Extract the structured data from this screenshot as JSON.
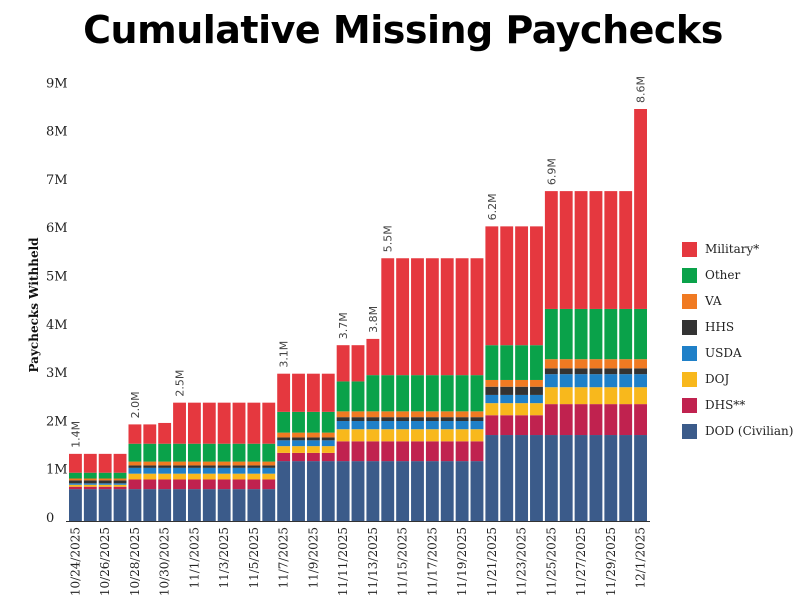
{
  "chart_data": {
    "type": "bar",
    "stacked": true,
    "title": "Cumulative Missing Paychecks",
    "xlabel": "",
    "ylabel": "Paychecks Withheld",
    "ylim": [
      0,
      9000000
    ],
    "yticks": [
      "0",
      "1M",
      "2M",
      "3M",
      "4M",
      "5M",
      "6M",
      "7M",
      "8M",
      "9M"
    ],
    "categories": [
      "10/24/2025",
      "10/25/2025",
      "10/26/2025",
      "10/27/2025",
      "10/28/2025",
      "10/29/2025",
      "10/30/2025",
      "10/31/2025",
      "11/1/2025",
      "11/2/2025",
      "11/3/2025",
      "11/4/2025",
      "11/5/2025",
      "11/6/2025",
      "11/7/2025",
      "11/8/2025",
      "11/9/2025",
      "11/10/2025",
      "11/11/2025",
      "11/12/2025",
      "11/13/2025",
      "11/14/2025",
      "11/15/2025",
      "11/16/2025",
      "11/17/2025",
      "11/18/2025",
      "11/19/2025",
      "11/20/2025",
      "11/21/2025",
      "11/22/2025",
      "11/23/2025",
      "11/24/2025",
      "11/25/2025",
      "11/26/2025",
      "11/27/2025",
      "11/28/2025",
      "11/29/2025",
      "11/30/2025",
      "12/1/2025"
    ],
    "xtick_labels": [
      "10/24/2025",
      "10/26/2025",
      "10/28/2025",
      "10/30/2025",
      "11/1/2025",
      "11/3/2025",
      "11/5/2025",
      "11/7/2025",
      "11/9/2025",
      "11/11/2025",
      "11/13/2025",
      "11/15/2025",
      "11/17/2025",
      "11/19/2025",
      "11/21/2025",
      "11/23/2025",
      "11/25/2025",
      "11/27/2025",
      "11/29/2025",
      "12/1/2025"
    ],
    "series_values_unit": "millions",
    "series": [
      {
        "name": "DOD (Civilian)",
        "color": "#3b5b8a",
        "values": [
          0.66,
          0.66,
          0.66,
          0.66,
          0.66,
          0.66,
          0.66,
          0.66,
          0.66,
          0.66,
          0.66,
          0.66,
          0.66,
          0.66,
          1.24,
          1.24,
          1.24,
          1.24,
          1.24,
          1.24,
          1.24,
          1.24,
          1.24,
          1.24,
          1.24,
          1.24,
          1.24,
          1.24,
          1.78,
          1.78,
          1.78,
          1.78,
          1.78,
          1.78,
          1.78,
          1.78,
          1.78,
          1.78,
          1.78
        ]
      },
      {
        "name": "DHS**",
        "color": "#c0224f",
        "values": [
          0.05,
          0.05,
          0.05,
          0.05,
          0.2,
          0.2,
          0.2,
          0.2,
          0.2,
          0.2,
          0.2,
          0.2,
          0.2,
          0.2,
          0.17,
          0.17,
          0.17,
          0.17,
          0.41,
          0.41,
          0.41,
          0.41,
          0.41,
          0.41,
          0.41,
          0.41,
          0.41,
          0.41,
          0.41,
          0.41,
          0.41,
          0.41,
          0.64,
          0.64,
          0.64,
          0.64,
          0.64,
          0.64,
          0.64
        ]
      },
      {
        "name": "DOJ",
        "color": "#f8b81c",
        "values": [
          0.04,
          0.04,
          0.04,
          0.04,
          0.12,
          0.12,
          0.12,
          0.12,
          0.12,
          0.12,
          0.12,
          0.12,
          0.12,
          0.12,
          0.14,
          0.14,
          0.14,
          0.14,
          0.25,
          0.25,
          0.25,
          0.25,
          0.25,
          0.25,
          0.25,
          0.25,
          0.25,
          0.25,
          0.25,
          0.25,
          0.25,
          0.25,
          0.35,
          0.35,
          0.35,
          0.35,
          0.35,
          0.35,
          0.35
        ]
      },
      {
        "name": "USDA",
        "color": "#1f80c8",
        "values": [
          0.03,
          0.03,
          0.03,
          0.03,
          0.12,
          0.12,
          0.12,
          0.12,
          0.12,
          0.12,
          0.12,
          0.12,
          0.12,
          0.12,
          0.12,
          0.12,
          0.12,
          0.12,
          0.17,
          0.17,
          0.17,
          0.17,
          0.17,
          0.17,
          0.17,
          0.17,
          0.17,
          0.17,
          0.17,
          0.17,
          0.17,
          0.17,
          0.27,
          0.27,
          0.27,
          0.27,
          0.27,
          0.27,
          0.27
        ]
      },
      {
        "name": "HHS",
        "color": "#333333",
        "values": [
          0.06,
          0.06,
          0.06,
          0.06,
          0.05,
          0.05,
          0.05,
          0.05,
          0.05,
          0.05,
          0.05,
          0.05,
          0.05,
          0.05,
          0.06,
          0.06,
          0.06,
          0.06,
          0.08,
          0.08,
          0.08,
          0.08,
          0.08,
          0.08,
          0.08,
          0.08,
          0.08,
          0.08,
          0.17,
          0.17,
          0.17,
          0.17,
          0.12,
          0.12,
          0.12,
          0.12,
          0.12,
          0.12,
          0.12
        ]
      },
      {
        "name": "VA",
        "color": "#f07a22",
        "values": [
          0.04,
          0.04,
          0.04,
          0.04,
          0.08,
          0.08,
          0.08,
          0.08,
          0.08,
          0.08,
          0.08,
          0.08,
          0.08,
          0.08,
          0.1,
          0.1,
          0.1,
          0.1,
          0.12,
          0.12,
          0.12,
          0.12,
          0.12,
          0.12,
          0.12,
          0.12,
          0.12,
          0.12,
          0.14,
          0.14,
          0.14,
          0.14,
          0.19,
          0.19,
          0.19,
          0.19,
          0.19,
          0.19,
          0.19
        ]
      },
      {
        "name": "Other",
        "color": "#0aa24a",
        "values": [
          0.12,
          0.12,
          0.12,
          0.12,
          0.37,
          0.37,
          0.37,
          0.37,
          0.37,
          0.37,
          0.37,
          0.37,
          0.37,
          0.37,
          0.43,
          0.43,
          0.43,
          0.43,
          0.62,
          0.62,
          0.75,
          0.75,
          0.75,
          0.75,
          0.75,
          0.75,
          0.75,
          0.75,
          0.72,
          0.72,
          0.72,
          0.72,
          1.04,
          1.04,
          1.04,
          1.04,
          1.04,
          1.04,
          1.04
        ]
      },
      {
        "name": "Military*",
        "color": "#e5383f",
        "values": [
          0.39,
          0.39,
          0.39,
          0.39,
          0.4,
          0.4,
          0.43,
          0.85,
          0.85,
          0.85,
          0.85,
          0.85,
          0.85,
          0.85,
          0.79,
          0.79,
          0.79,
          0.79,
          0.75,
          0.75,
          0.75,
          2.42,
          2.42,
          2.42,
          2.42,
          2.42,
          2.42,
          2.42,
          2.46,
          2.46,
          2.46,
          2.46,
          2.44,
          2.44,
          2.44,
          2.44,
          2.44,
          2.44,
          4.14
        ]
      }
    ],
    "legend_order": [
      "Military*",
      "Other",
      "VA",
      "HHS",
      "USDA",
      "DOJ",
      "DHS**",
      "DOD (Civilian)"
    ],
    "legend_placement": "right",
    "annotations": [
      {
        "category": "10/24/2025",
        "text": "1.4M"
      },
      {
        "category": "10/28/2025",
        "text": "2.0M"
      },
      {
        "category": "10/31/2025",
        "text": "2.5M"
      },
      {
        "category": "11/7/2025",
        "text": "3.1M"
      },
      {
        "category": "11/11/2025",
        "text": "3.7M"
      },
      {
        "category": "11/13/2025",
        "text": "3.8M"
      },
      {
        "category": "11/14/2025",
        "text": "5.5M"
      },
      {
        "category": "11/21/2025",
        "text": "6.2M"
      },
      {
        "category": "11/25/2025",
        "text": "6.9M"
      },
      {
        "category": "12/1/2025",
        "text": "8.6M"
      }
    ],
    "grid": false
  }
}
